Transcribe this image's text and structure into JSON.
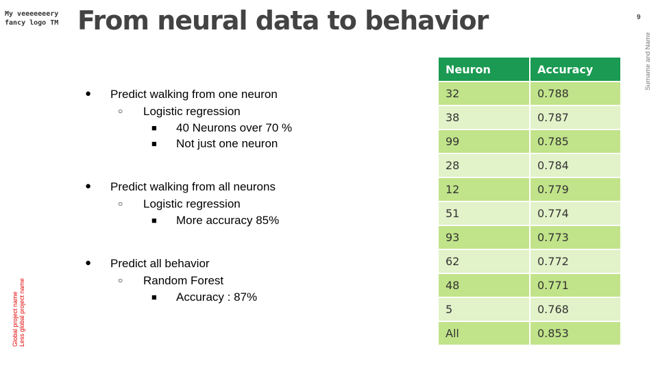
{
  "logo": {
    "line1": "My veeeeeeery",
    "line2": "fancy logo TM"
  },
  "title": "From neural data to behavior",
  "page_number": "9",
  "author": "Surname and Name",
  "side": {
    "project": "Global project name",
    "project2": "Less global project name"
  },
  "bullets": {
    "b1": "Predict walking from one neuron",
    "b1_1": "Logistic regression",
    "b1_1_1": "40 Neurons over 70 %",
    "b1_1_2": "Not just one neuron",
    "b2": "Predict walking from all neurons",
    "b2_1": "Logistic regression",
    "b2_1_1": "More accuracy 85%",
    "b3": "Predict all behavior",
    "b3_1": "Random Forest",
    "b3_1_1": "Accuracy : 87%"
  },
  "markers": {
    "level1": "●",
    "level2": "○",
    "level3": "■"
  },
  "table": {
    "headers": [
      "Neuron",
      "Accuracy"
    ],
    "rows": [
      [
        "32",
        "0.788"
      ],
      [
        "38",
        "0.787"
      ],
      [
        "99",
        "0.785"
      ],
      [
        "28",
        "0.784"
      ],
      [
        "12",
        "0.779"
      ],
      [
        "51",
        "0.774"
      ],
      [
        "93",
        "0.773"
      ],
      [
        "62",
        "0.772"
      ],
      [
        "48",
        "0.771"
      ],
      [
        "5",
        "0.768"
      ],
      [
        "All",
        "0.853"
      ]
    ]
  },
  "colors": {
    "header": "#1a9a52",
    "row_odd": "#c1e38a",
    "row_even": "#e2f2c9",
    "side_text": "#e00000"
  }
}
